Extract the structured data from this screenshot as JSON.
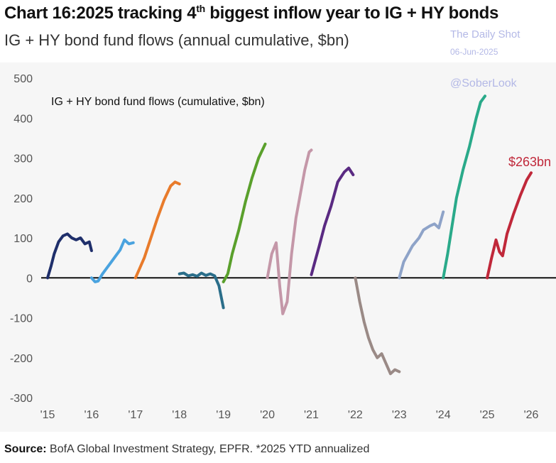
{
  "header": {
    "title_prefix": "Chart 16:2025 tracking 4",
    "title_sup": "th",
    "title_suffix": " biggest inflow year to IG + HY bonds",
    "subtitle": "IG + HY bond fund flows (annual cumulative, $bn)"
  },
  "watermark": {
    "line1": "The Daily Shot",
    "line2": "06-Jun-2025",
    "line3": "@SoberLook"
  },
  "footer": {
    "source_label": "Source:",
    "source_text": " BofA Global Investment Strategy, EPFR. *2025 YTD annualized"
  },
  "chart_data": {
    "type": "line",
    "title": "IG + HY bond fund flows (cumulative, $bn)",
    "ylim": [
      -300,
      500
    ],
    "xlim": [
      2015,
      2026.3
    ],
    "yticks": [
      500,
      400,
      300,
      200,
      100,
      0,
      -100,
      -200,
      -300
    ],
    "xticks": [
      {
        "label": "'15",
        "x": 2015
      },
      {
        "label": "'16",
        "x": 2016
      },
      {
        "label": "'17",
        "x": 2017
      },
      {
        "label": "'18",
        "x": 2018
      },
      {
        "label": "'19",
        "x": 2019
      },
      {
        "label": "'20",
        "x": 2020
      },
      {
        "label": "'21",
        "x": 2021
      },
      {
        "label": "'22",
        "x": 2022
      },
      {
        "label": "'23",
        "x": 2023
      },
      {
        "label": "'24",
        "x": 2024
      },
      {
        "label": "'25",
        "x": 2025
      },
      {
        "label": "'26",
        "x": 2026
      }
    ],
    "grid": false,
    "annotation": {
      "text": "$263bn",
      "x": 2025.5,
      "y": 290,
      "color": "#c0283a"
    },
    "series": [
      {
        "color": "#1f2f6b",
        "points": [
          [
            2015.0,
            0
          ],
          [
            2015.08,
            30
          ],
          [
            2015.15,
            60
          ],
          [
            2015.25,
            90
          ],
          [
            2015.35,
            105
          ],
          [
            2015.45,
            110
          ],
          [
            2015.55,
            100
          ],
          [
            2015.65,
            95
          ],
          [
            2015.75,
            100
          ],
          [
            2015.85,
            85
          ],
          [
            2015.95,
            90
          ],
          [
            2016.0,
            68
          ]
        ]
      },
      {
        "color": "#4aa3df",
        "points": [
          [
            2016.0,
            0
          ],
          [
            2016.08,
            -10
          ],
          [
            2016.15,
            -8
          ],
          [
            2016.25,
            10
          ],
          [
            2016.35,
            25
          ],
          [
            2016.45,
            40
          ],
          [
            2016.55,
            55
          ],
          [
            2016.65,
            70
          ],
          [
            2016.75,
            95
          ],
          [
            2016.85,
            85
          ],
          [
            2016.95,
            88
          ]
        ]
      },
      {
        "color": "#e87b2b",
        "points": [
          [
            2017.0,
            0
          ],
          [
            2017.08,
            20
          ],
          [
            2017.2,
            50
          ],
          [
            2017.35,
            100
          ],
          [
            2017.5,
            150
          ],
          [
            2017.65,
            195
          ],
          [
            2017.8,
            230
          ],
          [
            2017.9,
            240
          ],
          [
            2018.0,
            235
          ]
        ]
      },
      {
        "color": "#2b6e8a",
        "points": [
          [
            2018.0,
            10
          ],
          [
            2018.1,
            12
          ],
          [
            2018.2,
            5
          ],
          [
            2018.3,
            8
          ],
          [
            2018.4,
            4
          ],
          [
            2018.5,
            12
          ],
          [
            2018.6,
            6
          ],
          [
            2018.7,
            10
          ],
          [
            2018.8,
            5
          ],
          [
            2018.9,
            -20
          ],
          [
            2019.0,
            -75
          ]
        ]
      },
      {
        "color": "#5aa02c",
        "points": [
          [
            2019.0,
            -10
          ],
          [
            2019.1,
            10
          ],
          [
            2019.2,
            60
          ],
          [
            2019.35,
            120
          ],
          [
            2019.5,
            190
          ],
          [
            2019.65,
            250
          ],
          [
            2019.8,
            300
          ],
          [
            2019.95,
            335
          ]
        ]
      },
      {
        "color": "#c497a8",
        "points": [
          [
            2020.0,
            0
          ],
          [
            2020.1,
            60
          ],
          [
            2020.2,
            88
          ],
          [
            2020.28,
            -20
          ],
          [
            2020.35,
            -90
          ],
          [
            2020.45,
            -60
          ],
          [
            2020.55,
            60
          ],
          [
            2020.65,
            150
          ],
          [
            2020.75,
            210
          ],
          [
            2020.85,
            270
          ],
          [
            2020.95,
            315
          ],
          [
            2021.0,
            320
          ]
        ]
      },
      {
        "color": "#5a2a82",
        "points": [
          [
            2021.0,
            8
          ],
          [
            2021.08,
            40
          ],
          [
            2021.18,
            80
          ],
          [
            2021.3,
            130
          ],
          [
            2021.45,
            180
          ],
          [
            2021.6,
            240
          ],
          [
            2021.75,
            265
          ],
          [
            2021.85,
            275
          ],
          [
            2021.95,
            258
          ]
        ]
      },
      {
        "color": "#9a8a86",
        "points": [
          [
            2022.0,
            0
          ],
          [
            2022.1,
            -60
          ],
          [
            2022.2,
            -110
          ],
          [
            2022.3,
            -150
          ],
          [
            2022.4,
            -180
          ],
          [
            2022.5,
            -200
          ],
          [
            2022.6,
            -190
          ],
          [
            2022.7,
            -215
          ],
          [
            2022.8,
            -240
          ],
          [
            2022.9,
            -230
          ],
          [
            2023.0,
            -235
          ]
        ]
      },
      {
        "color": "#8ea3c8",
        "points": [
          [
            2023.0,
            0
          ],
          [
            2023.1,
            40
          ],
          [
            2023.2,
            60
          ],
          [
            2023.3,
            80
          ],
          [
            2023.45,
            100
          ],
          [
            2023.55,
            120
          ],
          [
            2023.7,
            130
          ],
          [
            2023.8,
            135
          ],
          [
            2023.9,
            125
          ],
          [
            2024.0,
            165
          ]
        ]
      },
      {
        "color": "#2aaa8a",
        "points": [
          [
            2024.0,
            0
          ],
          [
            2024.1,
            60
          ],
          [
            2024.2,
            130
          ],
          [
            2024.3,
            200
          ],
          [
            2024.45,
            270
          ],
          [
            2024.6,
            330
          ],
          [
            2024.75,
            400
          ],
          [
            2024.85,
            440
          ],
          [
            2024.95,
            455
          ]
        ]
      },
      {
        "color": "#c0283a",
        "points": [
          [
            2025.0,
            0
          ],
          [
            2025.1,
            50
          ],
          [
            2025.2,
            95
          ],
          [
            2025.28,
            65
          ],
          [
            2025.35,
            55
          ],
          [
            2025.45,
            110
          ],
          [
            2025.6,
            160
          ],
          [
            2025.75,
            205
          ],
          [
            2025.9,
            245
          ],
          [
            2026.0,
            263
          ]
        ]
      }
    ]
  }
}
